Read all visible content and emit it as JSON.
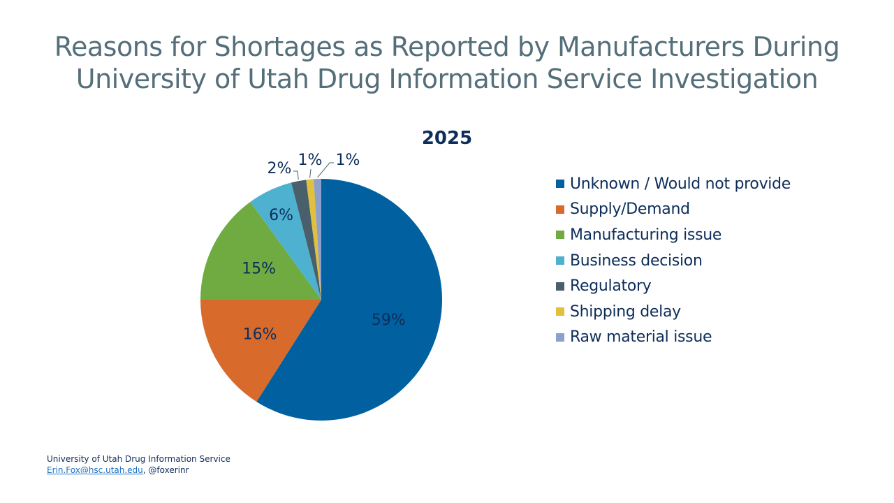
{
  "title_lines": [
    "Reasons for Shortages as Reported by Manufacturers During",
    "University of Utah Drug Information Service Investigation"
  ],
  "chart_data": {
    "type": "pie",
    "title": "2025",
    "start_angle": "12 o'clock, clockwise",
    "legend_placement": "right",
    "categories": [
      "Unknown / Would not provide",
      "Supply/Demand",
      "Manufacturing issue",
      "Business decision",
      "Regulatory",
      "Shipping delay",
      "Raw material issue"
    ],
    "values": [
      59,
      16,
      15,
      6,
      2,
      1,
      1
    ],
    "labels": [
      "59%",
      "16%",
      "15%",
      "6%",
      "2%",
      "1%",
      "1%"
    ],
    "colors": [
      "#0060a0",
      "#d86a2c",
      "#6fab41",
      "#4eb1cf",
      "#4a5f6c",
      "#e0c03c",
      "#8ca0cc"
    ]
  },
  "footer": {
    "line1": "University of Utah Drug Information Service",
    "email": "Erin.Fox@hsc.utah.edu",
    "handle": ", @foxerinr"
  }
}
